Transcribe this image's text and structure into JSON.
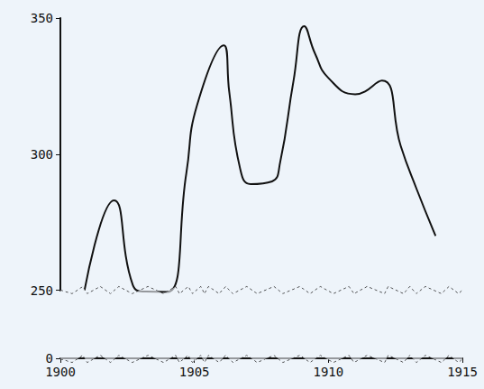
{
  "chart_data": {
    "type": "line",
    "color": "#111111",
    "grid": false,
    "x": [
      1900.9,
      1902.0,
      1902.7,
      1903.2,
      1904.0,
      1904.7,
      1905.1,
      1906.1,
      1906.3,
      1906.7,
      1907.1,
      1907.9,
      1908.2,
      1908.7,
      1909.1,
      1909.5,
      1910.0,
      1911.0,
      1912.0,
      1912.7,
      1913.3,
      1914.0
    ],
    "values": [
      250,
      283,
      252,
      245,
      244,
      293,
      318,
      340,
      323,
      295,
      289,
      290,
      297,
      327,
      347,
      337,
      328,
      322,
      327,
      303,
      287,
      270
    ],
    "xlim": [
      1900,
      1915
    ],
    "xticks": [
      1900,
      1905,
      1910,
      1915
    ],
    "ylim": [
      0,
      350
    ],
    "yticks": [
      0,
      250,
      300,
      350
    ]
  }
}
